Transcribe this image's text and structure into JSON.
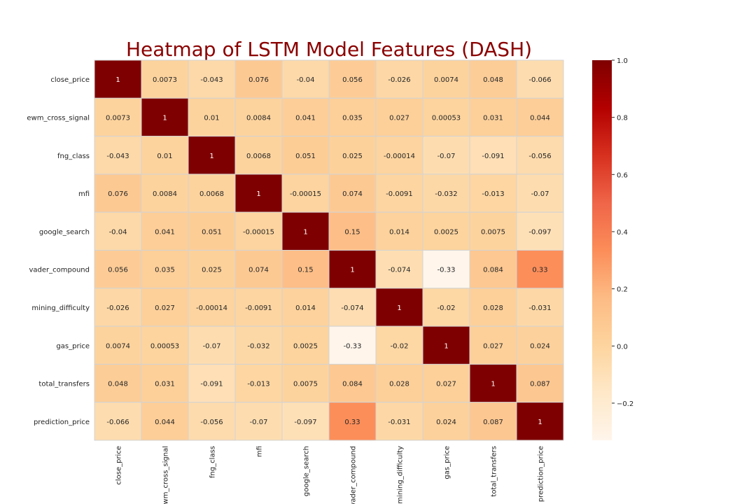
{
  "chart_data": {
    "type": "heatmap",
    "title": "Heatmap of LSTM Model Features (DASH)",
    "title_color": "#8b0000",
    "features": [
      "close_price",
      "ewm_cross_signal",
      "fng_class",
      "mfi",
      "google_search",
      "vader_compound",
      "mining_difficulty",
      "gas_price",
      "total_transfers",
      "prediction_price"
    ],
    "labels": [
      [
        "1",
        "0.0073",
        "-0.043",
        "0.076",
        "-0.04",
        "0.056",
        "-0.026",
        "0.0074",
        "0.048",
        "-0.066"
      ],
      [
        "0.0073",
        "1",
        "0.01",
        "0.0084",
        "0.041",
        "0.035",
        "0.027",
        "0.00053",
        "0.031",
        "0.044"
      ],
      [
        "-0.043",
        "0.01",
        "1",
        "0.0068",
        "0.051",
        "0.025",
        "-0.00014",
        "-0.07",
        "-0.091",
        "-0.056"
      ],
      [
        "0.076",
        "0.0084",
        "0.0068",
        "1",
        "-0.00015",
        "0.074",
        "-0.0091",
        "-0.032",
        "-0.013",
        "-0.07"
      ],
      [
        "-0.04",
        "0.041",
        "0.051",
        "-0.00015",
        "1",
        "0.15",
        "0.014",
        "0.0025",
        "0.0075",
        "-0.097"
      ],
      [
        "0.056",
        "0.035",
        "0.025",
        "0.074",
        "0.15",
        "1",
        "-0.074",
        "-0.33",
        "0.084",
        "0.33"
      ],
      [
        "-0.026",
        "0.027",
        "-0.00014",
        "-0.0091",
        "0.014",
        "-0.074",
        "1",
        "-0.02",
        "0.028",
        "-0.031"
      ],
      [
        "0.0074",
        "0.00053",
        "-0.07",
        "-0.032",
        "0.0025",
        "-0.33",
        "-0.02",
        "1",
        "0.027",
        "0.024"
      ],
      [
        "0.048",
        "0.031",
        "-0.091",
        "-0.013",
        "0.0075",
        "0.084",
        "0.028",
        "0.027",
        "1",
        "0.087"
      ],
      [
        "-0.066",
        "0.044",
        "-0.056",
        "-0.07",
        "-0.097",
        "0.33",
        "-0.031",
        "0.024",
        "0.087",
        "1"
      ]
    ],
    "colormap": "OrRd",
    "color_stops": [
      "#fff5eb",
      "#fee8c8",
      "#fdd49e",
      "#fdbb84",
      "#fc8d59",
      "#ef6548",
      "#d7301f",
      "#b30000",
      "#7f0000"
    ],
    "vmin": -0.33,
    "vmax": 1.0,
    "colorbar_ticks": [
      "−0.2",
      "0.0",
      "0.2",
      "0.4",
      "0.6",
      "0.8",
      "1.0"
    ],
    "grid": true,
    "cell_border_color": "#d3d3d3"
  }
}
